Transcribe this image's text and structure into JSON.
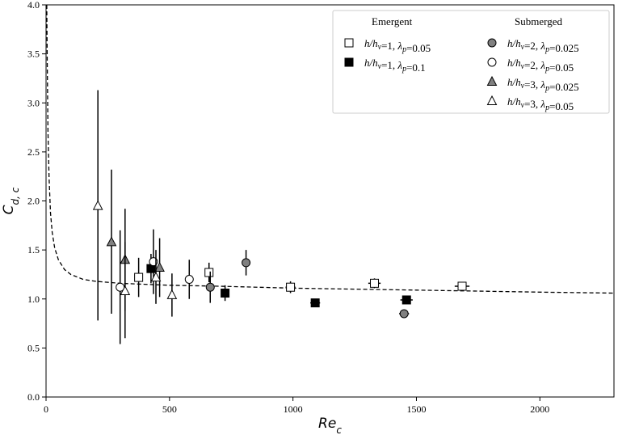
{
  "chart_data": {
    "type": "scatter",
    "title": "",
    "xlabel_base": "Re",
    "xlabel_sub": "c",
    "ylabel_base": "C",
    "ylabel_sub": "d, c",
    "xlim": [
      0,
      2300
    ],
    "ylim": [
      0,
      4.0
    ],
    "xticks": [
      0,
      500,
      1000,
      1500,
      2000
    ],
    "yticks": [
      0.0,
      0.5,
      1.0,
      1.5,
      2.0,
      2.5,
      3.0,
      3.5,
      4.0
    ],
    "xtick_labels": [
      "0",
      "500",
      "1000",
      "1500",
      "2000"
    ],
    "ytick_labels": [
      "0.0",
      "0.5",
      "1.0",
      "1.5",
      "2.0",
      "2.5",
      "3.0",
      "3.5",
      "4.0"
    ],
    "grid": false,
    "legend_position": "top-right",
    "legend_groups": [
      "Emergent",
      "Submerged"
    ],
    "fit_curve": {
      "style": "dashed",
      "color": "#000000",
      "x": [
        3,
        5,
        8,
        12,
        18,
        25,
        35,
        50,
        75,
        100,
        150,
        200,
        300,
        400,
        500,
        700,
        1000,
        1500,
        2000,
        2300
      ],
      "y": [
        4.0,
        3.4,
        2.7,
        2.25,
        1.88,
        1.68,
        1.52,
        1.4,
        1.3,
        1.25,
        1.2,
        1.18,
        1.16,
        1.15,
        1.14,
        1.13,
        1.11,
        1.09,
        1.07,
        1.06
      ]
    },
    "series": [
      {
        "name": "h/h_v=1, λ_p=0.05",
        "group": "Emergent",
        "label_parts": [
          "h/h",
          "v",
          "=1, ",
          "λ",
          "p",
          "=0.05"
        ],
        "marker": "square",
        "fill": "#ffffff",
        "points": [
          {
            "x": 375,
            "y": 1.22,
            "ylow": 1.02,
            "yhigh": 1.42,
            "xerr": 0
          },
          {
            "x": 660,
            "y": 1.27,
            "ylow": 1.17,
            "yhigh": 1.37,
            "xerr": 0
          },
          {
            "x": 990,
            "y": 1.12,
            "ylow": 1.06,
            "yhigh": 1.18,
            "xerr": 20
          },
          {
            "x": 1330,
            "y": 1.16,
            "ylow": 1.11,
            "yhigh": 1.21,
            "xerr": 25
          },
          {
            "x": 1685,
            "y": 1.13,
            "ylow": 1.09,
            "yhigh": 1.17,
            "xerr": 30
          }
        ]
      },
      {
        "name": "h/h_v=1, λ_p=0.1",
        "group": "Emergent",
        "label_parts": [
          "h/h",
          "v",
          "=1, ",
          "λ",
          "p",
          "=0.1"
        ],
        "marker": "square",
        "fill": "#000000",
        "points": [
          {
            "x": 425,
            "y": 1.31,
            "ylow": 1.16,
            "yhigh": 1.46,
            "xerr": 0
          },
          {
            "x": 725,
            "y": 1.06,
            "ylow": 0.98,
            "yhigh": 1.14,
            "xerr": 10
          },
          {
            "x": 1090,
            "y": 0.96,
            "ylow": 0.92,
            "yhigh": 1.0,
            "xerr": 20
          },
          {
            "x": 1460,
            "y": 0.99,
            "ylow": 0.95,
            "yhigh": 1.03,
            "xerr": 25
          }
        ]
      },
      {
        "name": "h/h_v=2, λ_p=0.025",
        "group": "Submerged",
        "label_parts": [
          "h/h",
          "v",
          "=2, ",
          "λ",
          "p",
          "=0.025"
        ],
        "marker": "circle",
        "fill": "#808080",
        "points": [
          {
            "x": 665,
            "y": 1.12,
            "ylow": 0.96,
            "yhigh": 1.28,
            "xerr": 0
          },
          {
            "x": 810,
            "y": 1.37,
            "ylow": 1.24,
            "yhigh": 1.5,
            "xerr": 0
          },
          {
            "x": 1450,
            "y": 0.85,
            "ylow": 0.81,
            "yhigh": 0.89,
            "xerr": 20
          }
        ]
      },
      {
        "name": "h/h_v=2, λ_p=0.05",
        "group": "Submerged",
        "label_parts": [
          "h/h",
          "v",
          "=2, ",
          "λ",
          "p",
          "=0.05"
        ],
        "marker": "circle",
        "fill": "#ffffff",
        "points": [
          {
            "x": 300,
            "y": 1.12,
            "ylow": 0.54,
            "yhigh": 1.7,
            "xerr": 0
          },
          {
            "x": 435,
            "y": 1.38,
            "ylow": 1.05,
            "yhigh": 1.71,
            "xerr": 0
          },
          {
            "x": 580,
            "y": 1.2,
            "ylow": 1.0,
            "yhigh": 1.4,
            "xerr": 0
          }
        ]
      },
      {
        "name": "h/h_v=3, λ_p=0.025",
        "group": "Submerged",
        "label_parts": [
          "h/h",
          "v",
          "=3, ",
          "λ",
          "p",
          "=0.025"
        ],
        "marker": "triangle",
        "fill": "#808080",
        "points": [
          {
            "x": 265,
            "y": 1.58,
            "ylow": 0.85,
            "yhigh": 2.32,
            "xerr": 0
          },
          {
            "x": 320,
            "y": 1.4,
            "ylow": 0.88,
            "yhigh": 1.92,
            "xerr": 0
          },
          {
            "x": 460,
            "y": 1.32,
            "ylow": 1.02,
            "yhigh": 1.62,
            "xerr": 0
          }
        ]
      },
      {
        "name": "h/h_v=3, λ_p=0.05",
        "group": "Submerged",
        "label_parts": [
          "h/h",
          "v",
          "=3, ",
          "λ",
          "p",
          "=0.05"
        ],
        "marker": "triangle",
        "fill": "#ffffff",
        "points": [
          {
            "x": 210,
            "y": 1.95,
            "ylow": 0.78,
            "yhigh": 3.13,
            "xerr": 0
          },
          {
            "x": 320,
            "y": 1.08,
            "ylow": 0.6,
            "yhigh": 1.58,
            "xerr": 0
          },
          {
            "x": 445,
            "y": 1.22,
            "ylow": 0.95,
            "yhigh": 1.5,
            "xerr": 0
          },
          {
            "x": 510,
            "y": 1.04,
            "ylow": 0.82,
            "yhigh": 1.26,
            "xerr": 0
          }
        ]
      }
    ]
  }
}
